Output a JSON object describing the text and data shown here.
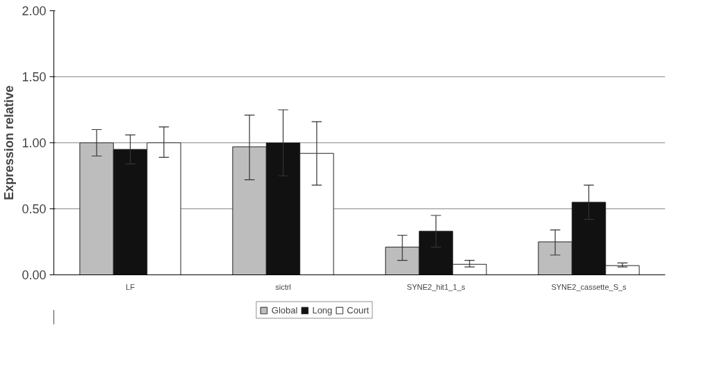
{
  "chart_data": {
    "type": "bar",
    "ylabel": "Expression relative",
    "categories": [
      "LF",
      "sictrl",
      "SYNE2_hit1_1_s",
      "SYNE2_cassette_S_s"
    ],
    "series": [
      {
        "name": "Global",
        "color": "#bdbdbd",
        "values": [
          1.0,
          0.97,
          0.21,
          0.25
        ],
        "errors": [
          [
            0.9,
            1.1
          ],
          [
            0.72,
            1.21
          ],
          [
            0.11,
            0.3
          ],
          [
            0.15,
            0.34
          ]
        ]
      },
      {
        "name": "Long",
        "color": "#111111",
        "values": [
          0.95,
          1.0,
          0.33,
          0.55
        ],
        "errors": [
          0.11,
          0.25,
          0.12,
          0.13
        ]
      },
      {
        "name": "Court",
        "color": "#ffffff",
        "values": [
          1.0,
          0.92,
          0.08,
          0.07
        ],
        "errors": [
          [
            0.89,
            1.12
          ],
          [
            0.68,
            1.16
          ],
          [
            0.06,
            0.11
          ],
          [
            0.06,
            0.09
          ]
        ]
      }
    ],
    "ylim": [
      0,
      2
    ],
    "yticks": [
      {
        "value": 0,
        "label": "0.00"
      },
      {
        "value": 0.5,
        "label": "0.50"
      },
      {
        "value": 1,
        "label": "1.00"
      },
      {
        "value": 1.5,
        "label": "1.50"
      },
      {
        "value": 2,
        "label": "2.00"
      }
    ],
    "grid": "y",
    "legend": "bottom"
  }
}
